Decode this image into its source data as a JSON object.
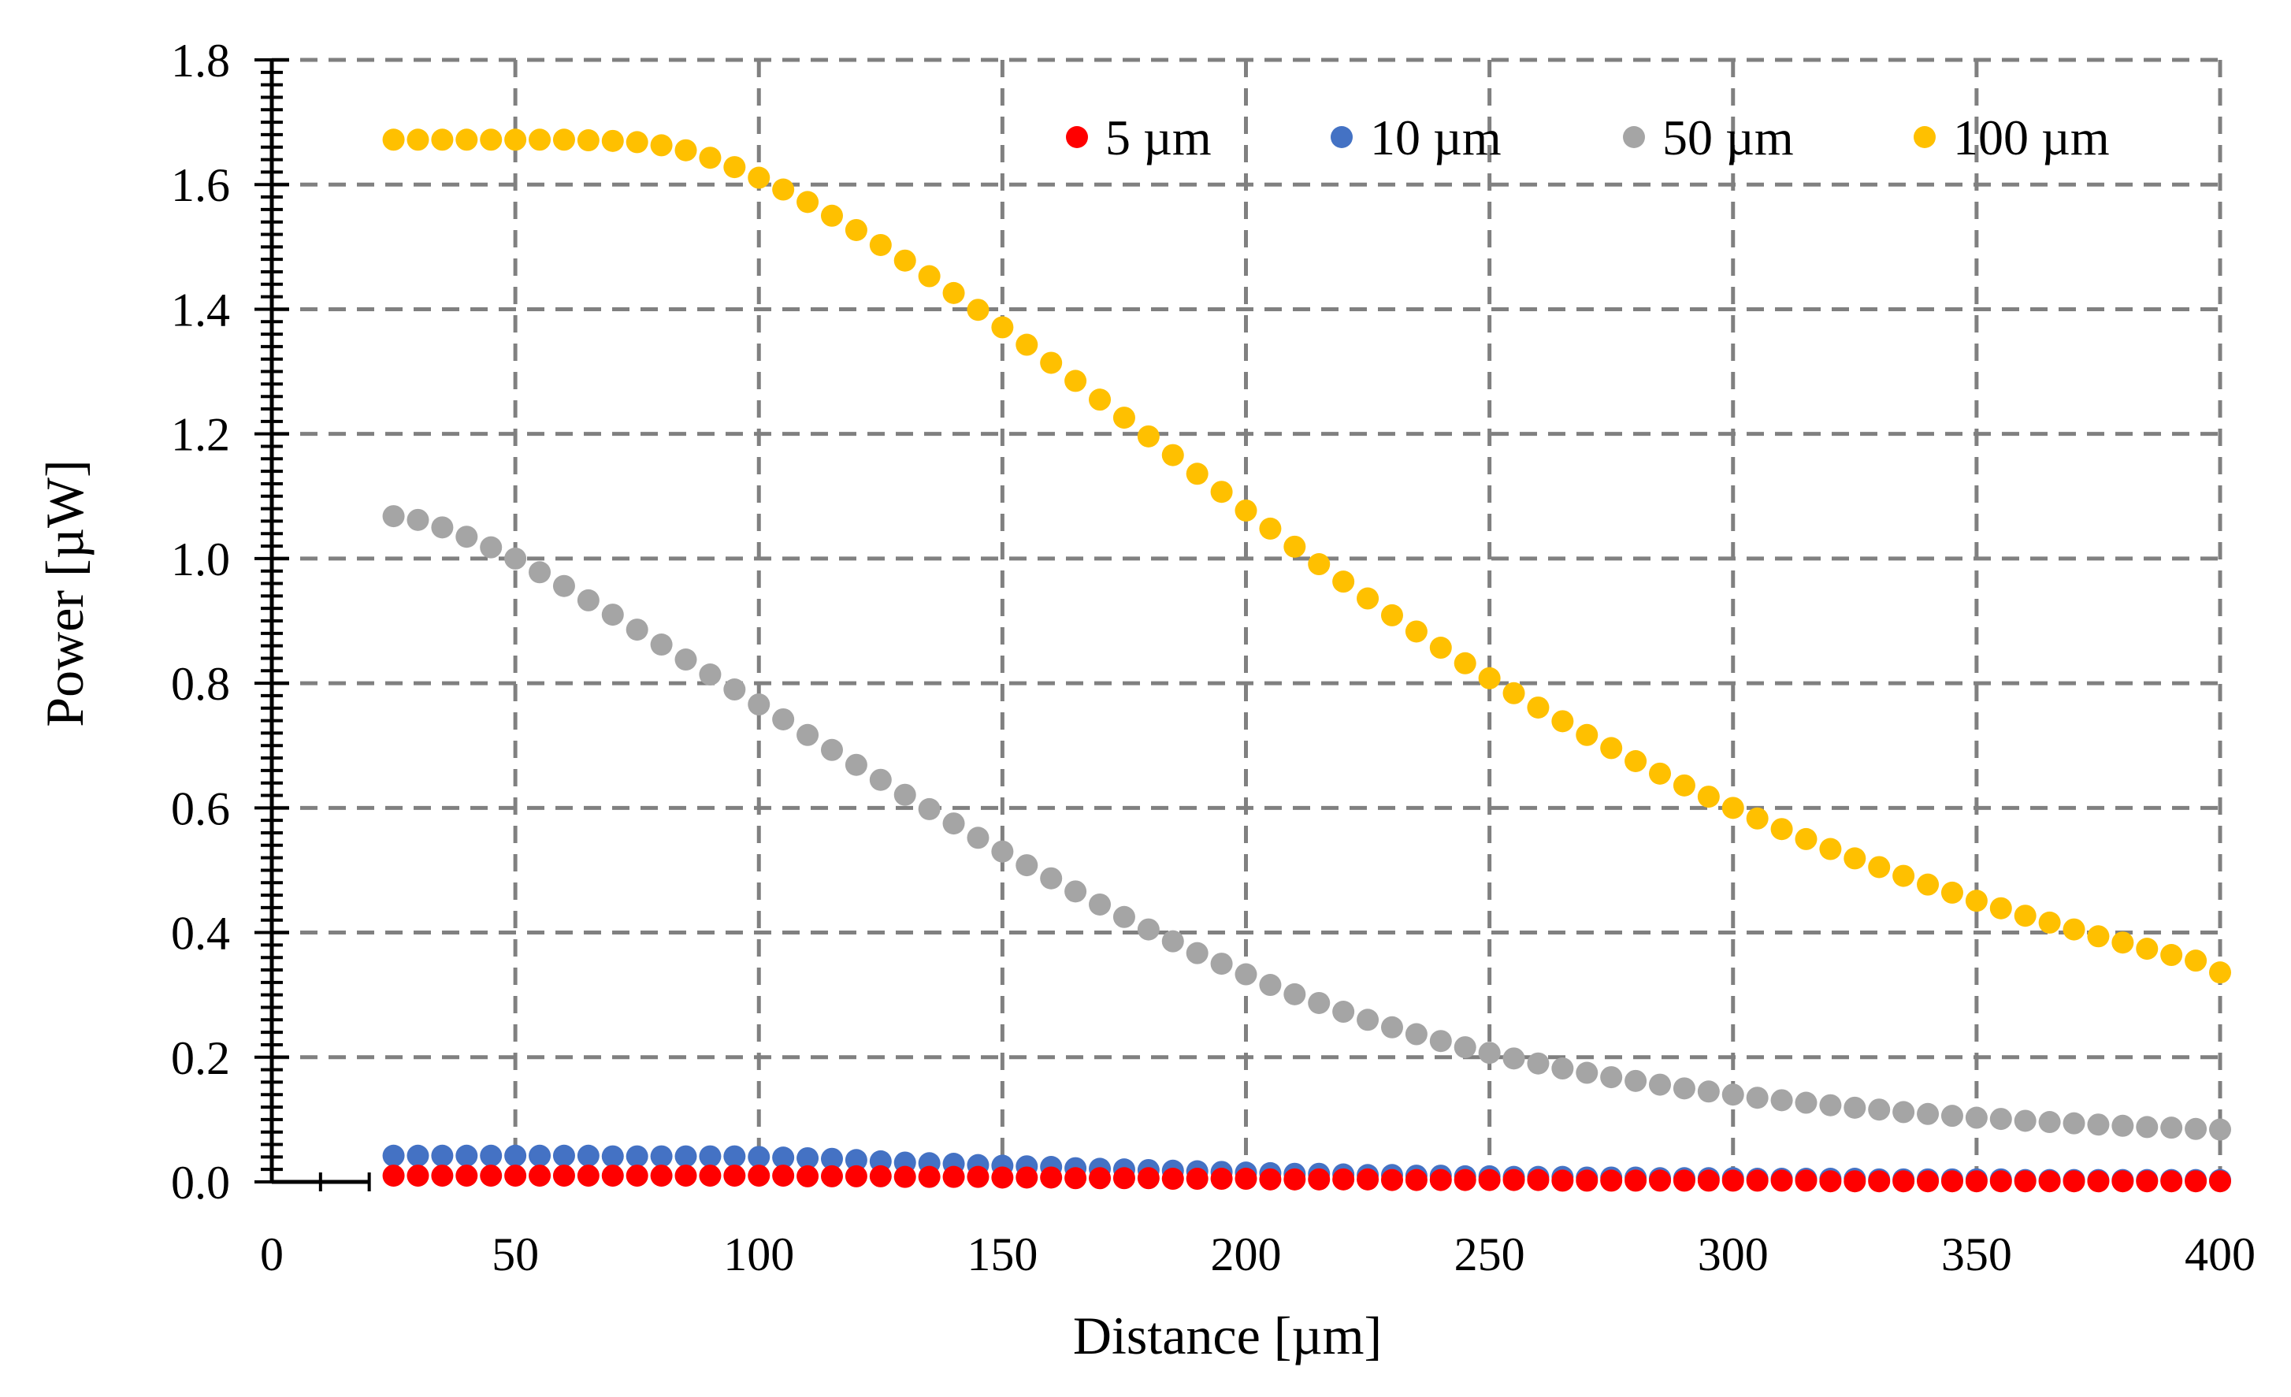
{
  "chart_data": {
    "type": "scatter",
    "title": "",
    "xlabel": "Distance [µm]",
    "ylabel": "Power [µW]",
    "xlim": [
      0,
      400
    ],
    "ylim": [
      0,
      1.8
    ],
    "x_ticks": [
      0,
      50,
      100,
      150,
      200,
      250,
      300,
      350,
      400
    ],
    "x_tick_labels": [
      "0",
      "50",
      "100",
      "150",
      "200",
      "250",
      "300",
      "350",
      "400"
    ],
    "y_ticks": [
      0,
      0.2,
      0.4,
      0.6,
      0.8,
      1.0,
      1.2,
      1.4,
      1.6,
      1.8
    ],
    "y_tick_labels": [
      "0.0",
      "0.2",
      "0.4",
      "0.6",
      "0.8",
      "1.0",
      "1.2",
      "1.4",
      "1.6",
      "1.8"
    ],
    "grid": true,
    "legend_position": "top-right",
    "x": [
      25,
      30,
      35,
      40,
      45,
      50,
      55,
      60,
      65,
      70,
      75,
      80,
      85,
      90,
      95,
      100,
      105,
      110,
      115,
      120,
      125,
      130,
      135,
      140,
      145,
      150,
      155,
      160,
      165,
      170,
      175,
      180,
      185,
      190,
      195,
      200,
      205,
      210,
      215,
      220,
      225,
      230,
      235,
      240,
      245,
      250,
      255,
      260,
      265,
      270,
      275,
      280,
      285,
      290,
      295,
      300,
      305,
      310,
      315,
      320,
      325,
      330,
      335,
      340,
      345,
      350,
      355,
      360,
      365,
      370,
      375,
      380,
      385,
      390,
      395,
      400
    ],
    "series": [
      {
        "name": "5 µm",
        "color": "#ff0000",
        "values": [
          0.01,
          0.01,
          0.01,
          0.01,
          0.01,
          0.01,
          0.01,
          0.01,
          0.01,
          0.01,
          0.01,
          0.01,
          0.01,
          0.01,
          0.01,
          0.01,
          0.01,
          0.009,
          0.009,
          0.009,
          0.009,
          0.008,
          0.008,
          0.008,
          0.008,
          0.007,
          0.007,
          0.007,
          0.006,
          0.006,
          0.006,
          0.006,
          0.005,
          0.005,
          0.005,
          0.005,
          0.004,
          0.004,
          0.004,
          0.004,
          0.004,
          0.003,
          0.003,
          0.003,
          0.003,
          0.003,
          0.003,
          0.003,
          0.002,
          0.002,
          0.002,
          0.002,
          0.002,
          0.002,
          0.002,
          0.002,
          0.002,
          0.002,
          0.002,
          0.001,
          0.001,
          0.001,
          0.001,
          0.001,
          0.001,
          0.001,
          0.001,
          0.001,
          0.001,
          0.001,
          0.001,
          0.001,
          0.001,
          0.001,
          0.001,
          0.001
        ]
      },
      {
        "name": "10 µm",
        "color": "#4472c4",
        "values": [
          0.042,
          0.042,
          0.042,
          0.042,
          0.042,
          0.042,
          0.042,
          0.042,
          0.042,
          0.041,
          0.041,
          0.041,
          0.041,
          0.041,
          0.041,
          0.04,
          0.039,
          0.038,
          0.037,
          0.035,
          0.033,
          0.031,
          0.03,
          0.029,
          0.027,
          0.026,
          0.025,
          0.024,
          0.022,
          0.021,
          0.02,
          0.019,
          0.018,
          0.017,
          0.016,
          0.015,
          0.014,
          0.013,
          0.013,
          0.012,
          0.011,
          0.011,
          0.01,
          0.01,
          0.009,
          0.009,
          0.008,
          0.008,
          0.008,
          0.007,
          0.007,
          0.007,
          0.006,
          0.006,
          0.006,
          0.006,
          0.005,
          0.005,
          0.005,
          0.005,
          0.005,
          0.004,
          0.004,
          0.004,
          0.004,
          0.004,
          0.004,
          0.003,
          0.003,
          0.003,
          0.003,
          0.003,
          0.003,
          0.003,
          0.003,
          0.003
        ]
      },
      {
        "name": "50 µm",
        "color": "#a5a5a5",
        "values": [
          1.068,
          1.062,
          1.05,
          1.035,
          1.018,
          1.0,
          0.978,
          0.956,
          0.933,
          0.91,
          0.886,
          0.862,
          0.838,
          0.814,
          0.79,
          0.766,
          0.742,
          0.717,
          0.693,
          0.669,
          0.645,
          0.621,
          0.598,
          0.575,
          0.552,
          0.53,
          0.508,
          0.487,
          0.466,
          0.445,
          0.425,
          0.405,
          0.386,
          0.367,
          0.35,
          0.333,
          0.316,
          0.301,
          0.287,
          0.273,
          0.26,
          0.248,
          0.237,
          0.226,
          0.216,
          0.207,
          0.198,
          0.19,
          0.182,
          0.175,
          0.168,
          0.162,
          0.156,
          0.15,
          0.145,
          0.14,
          0.135,
          0.131,
          0.127,
          0.123,
          0.119,
          0.116,
          0.112,
          0.109,
          0.106,
          0.103,
          0.101,
          0.098,
          0.096,
          0.094,
          0.092,
          0.09,
          0.088,
          0.087,
          0.085,
          0.084
        ]
      },
      {
        "name": "100 µm",
        "color": "#ffc000",
        "values": [
          1.672,
          1.672,
          1.672,
          1.672,
          1.672,
          1.672,
          1.672,
          1.672,
          1.671,
          1.67,
          1.668,
          1.663,
          1.655,
          1.643,
          1.628,
          1.611,
          1.592,
          1.572,
          1.55,
          1.527,
          1.503,
          1.478,
          1.453,
          1.426,
          1.399,
          1.371,
          1.343,
          1.314,
          1.285,
          1.255,
          1.226,
          1.196,
          1.166,
          1.136,
          1.107,
          1.077,
          1.048,
          1.019,
          0.991,
          0.963,
          0.936,
          0.909,
          0.883,
          0.857,
          0.832,
          0.808,
          0.784,
          0.761,
          0.739,
          0.717,
          0.696,
          0.675,
          0.655,
          0.636,
          0.618,
          0.6,
          0.583,
          0.566,
          0.55,
          0.534,
          0.519,
          0.505,
          0.491,
          0.477,
          0.464,
          0.451,
          0.439,
          0.427,
          0.416,
          0.405,
          0.394,
          0.384,
          0.374,
          0.364,
          0.355,
          0.336
        ]
      }
    ]
  }
}
